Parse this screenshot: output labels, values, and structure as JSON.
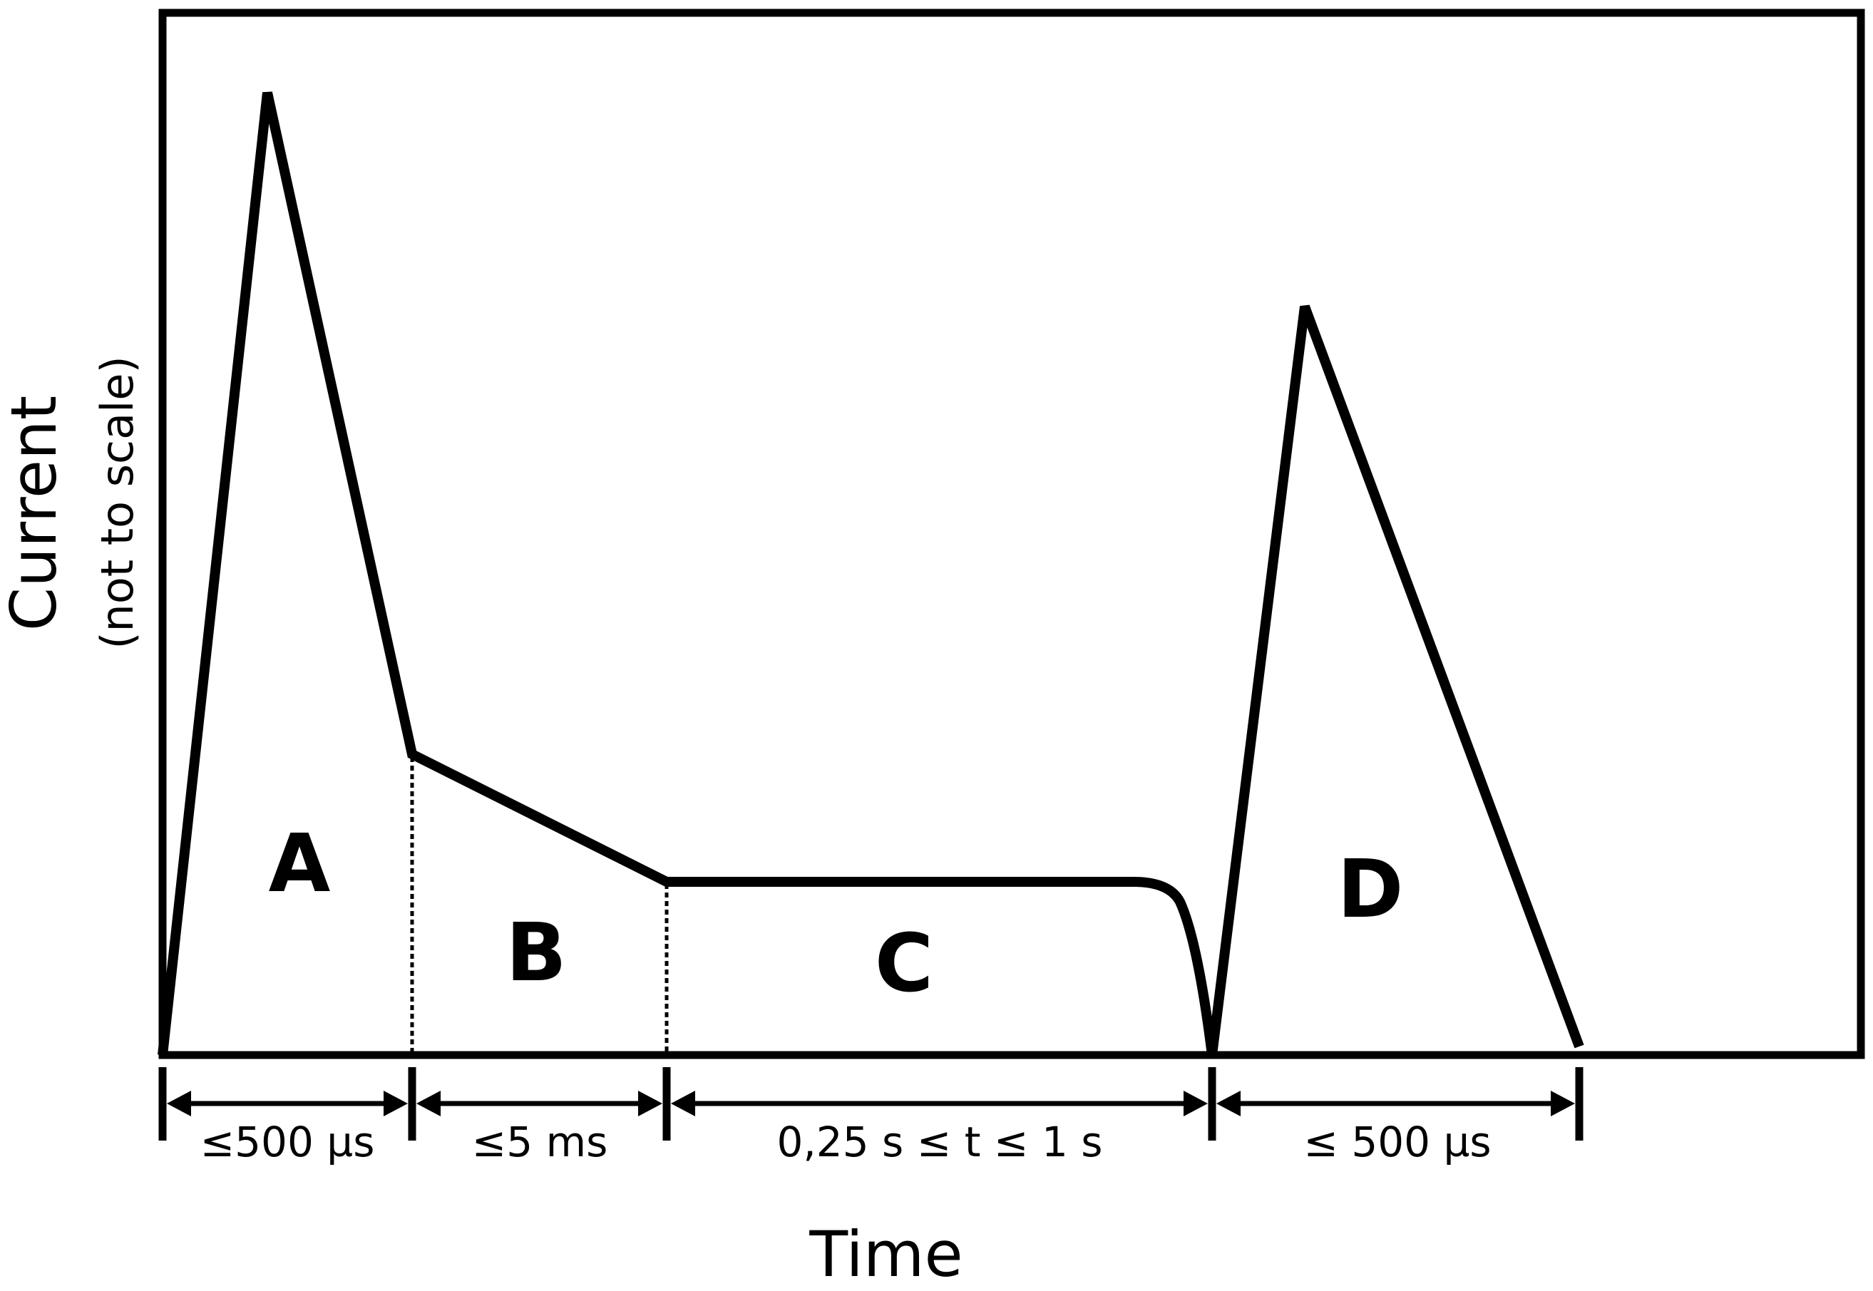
{
  "figure": {
    "x_axis_label": "Time",
    "y_axis_label": "Current",
    "y_axis_note": "(not to scale)",
    "colors": {
      "line": "#000000",
      "background": "#ffffff"
    }
  },
  "components": [
    {
      "letter": "A",
      "duration": "≤500 µs"
    },
    {
      "letter": "B",
      "duration": "≤5 ms"
    },
    {
      "letter": "C",
      "duration": "0,25 s ≤ t ≤ 1 s"
    },
    {
      "letter": "D",
      "duration": "≤ 500 µs"
    }
  ]
}
